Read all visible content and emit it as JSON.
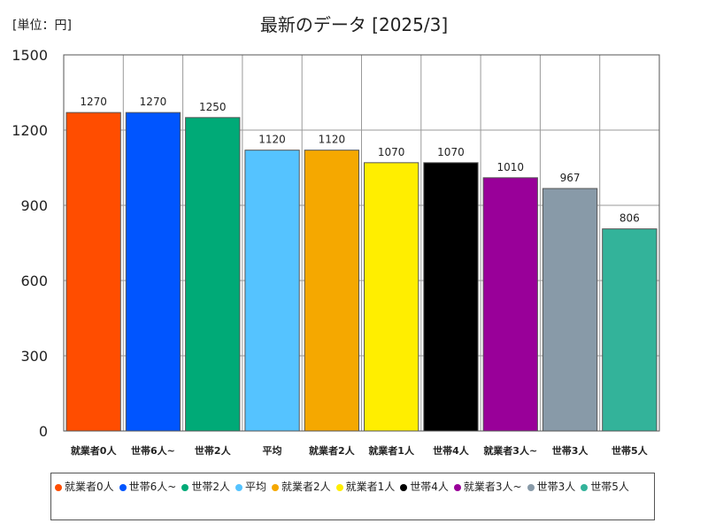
{
  "unit_label": "[単位：円]",
  "chart_data": {
    "type": "bar",
    "title": "最新のデータ [2025/3]",
    "xlabel": "",
    "ylabel": "",
    "ylim": [
      0,
      1500
    ],
    "yticks": [
      0,
      300,
      600,
      900,
      1200,
      1500
    ],
    "grid": true,
    "legend": "bottom",
    "categories": [
      "就業者0人",
      "世帯6人~",
      "世帯2人",
      "平均",
      "就業者2人",
      "就業者1人",
      "世帯4人",
      "就業者3人~",
      "世帯3人",
      "世帯5人"
    ],
    "values": [
      1270,
      1270,
      1250,
      1120,
      1120,
      1070,
      1070,
      1010,
      967,
      806
    ],
    "colors": [
      "#ff4d00",
      "#0055ff",
      "#00aa77",
      "#55c3ff",
      "#f5a800",
      "#ffee00",
      "#000000",
      "#990099",
      "#889aa8",
      "#33b39a"
    ]
  }
}
